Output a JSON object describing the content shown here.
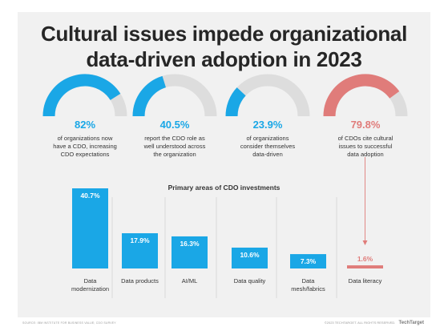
{
  "title_lines": [
    "Cultural issues impede organizational",
    "data-driven adoption in 2023"
  ],
  "colors": {
    "accent": "#1aa7e6",
    "gauge_track": "#dddddd",
    "highlight": "#e07c7a",
    "title": "#262626",
    "card_bg": "#f1f1f1"
  },
  "stats": [
    {
      "value": "82%",
      "percent": 82,
      "color": "#1aa7e6",
      "desc": [
        "of organizations now",
        "have a CDO, increasing",
        "CDO expectations"
      ]
    },
    {
      "value": "40.5%",
      "percent": 40.5,
      "color": "#1aa7e6",
      "desc": [
        "report the CDO role as",
        "well understood across",
        "the organization"
      ]
    },
    {
      "value": "23.9%",
      "percent": 23.9,
      "color": "#1aa7e6",
      "desc": [
        "of organizations",
        "consider themselves",
        "data-driven"
      ]
    },
    {
      "value": "79.8%",
      "percent": 79.8,
      "color": "#e07c7a",
      "desc": [
        "of CDOs cite cultural",
        "issues to successful",
        "data adoption"
      ]
    }
  ],
  "chart_data": {
    "type": "bar",
    "title": "Primary areas of CDO investments",
    "categories": [
      [
        "Data",
        "modernization"
      ],
      [
        "Data products"
      ],
      [
        "AI/ML"
      ],
      [
        "Data quality"
      ],
      [
        "Data",
        "mesh/fabrics"
      ],
      [
        "Data literacy"
      ]
    ],
    "values": [
      40.7,
      17.9,
      16.3,
      10.6,
      7.3,
      1.6
    ],
    "value_labels": [
      "40.7%",
      "17.9%",
      "16.3%",
      "10.6%",
      "7.3%",
      "1.6%"
    ],
    "bar_colors": [
      "#1aa7e6",
      "#1aa7e6",
      "#1aa7e6",
      "#1aa7e6",
      "#1aa7e6",
      "#e07c7a"
    ],
    "ylim": [
      0,
      40.7
    ],
    "grid": false,
    "xlabel": "",
    "ylabel": ""
  },
  "footer": {
    "source": "SOURCE: IBM INSTITUTE FOR BUSINESS VALUE; CDO SURVEY",
    "copyright": "©2023 TECHTARGET. ALL RIGHTS RESERVED.",
    "brand": "TechTarget"
  }
}
